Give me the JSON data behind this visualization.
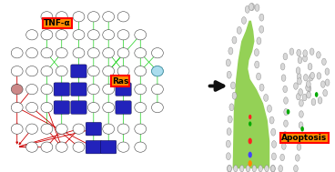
{
  "background_color": "#ffffff",
  "tnf_label": "TNF-α",
  "tnf_bg": "#ff8c00",
  "tnf_border": "#ff0000",
  "ras_label": "Ras",
  "ras_bg": "#ff8c00",
  "ras_border": "#ff0000",
  "apoptosis_label": "Apoptosis",
  "apoptosis_bg": "#ff8c00",
  "apoptosis_border": "#ff0000",
  "text_color": "#000000",
  "green": "#00cc00",
  "red": "#cc0000",
  "blue_node": "#2222bb",
  "white_node": "#ffffff",
  "pink_node": "#cc8888",
  "cyan_node": "#aaddee",
  "node_edge": "#444444",
  "intestine_bead_fill": "#d8d8d8",
  "intestine_bead_edge": "#888888",
  "intestine_green": "#88cc44",
  "intestine_inner_green": "#aad455",
  "arrow_color": "#111111"
}
